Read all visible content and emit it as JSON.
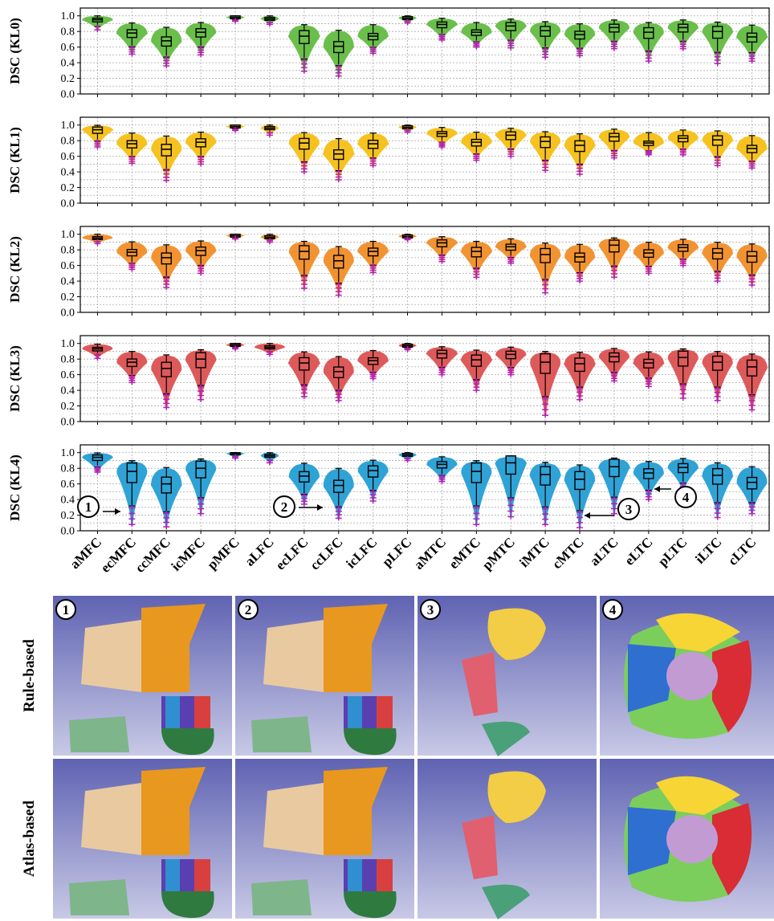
{
  "chart_data": {
    "type": "violin",
    "categories": [
      "aMFC",
      "ecMFC",
      "ccMFC",
      "icMFC",
      "pMFC",
      "aLFC",
      "ecLFC",
      "ccLFC",
      "icLFC",
      "pLFC",
      "aMTC",
      "eMTC",
      "pMTC",
      "iMTC",
      "cMTC",
      "aLTC",
      "eLTC",
      "pLTC",
      "iLTC",
      "cLTC"
    ],
    "ylim": [
      0.0,
      1.1
    ],
    "yticks": [
      "0.0",
      "0.2",
      "0.4",
      "0.6",
      "0.8",
      "1.0"
    ],
    "grid": true,
    "panels": [
      {
        "ylabel": "DSC (KL0)",
        "color": "#6abf4b",
        "median": [
          0.95,
          0.78,
          0.68,
          0.79,
          0.98,
          0.96,
          0.74,
          0.61,
          0.74,
          0.97,
          0.89,
          0.79,
          0.87,
          0.81,
          0.76,
          0.85,
          0.79,
          0.85,
          0.8,
          0.73
        ],
        "low": [
          0.82,
          0.51,
          0.36,
          0.5,
          0.93,
          0.89,
          0.29,
          0.23,
          0.52,
          0.91,
          0.69,
          0.6,
          0.59,
          0.47,
          0.49,
          0.58,
          0.42,
          0.58,
          0.39,
          0.42
        ]
      },
      {
        "ylabel": "DSC (KL1)",
        "color": "#f6c21f",
        "median": [
          0.94,
          0.76,
          0.69,
          0.78,
          0.98,
          0.96,
          0.77,
          0.63,
          0.76,
          0.97,
          0.89,
          0.78,
          0.87,
          0.79,
          0.74,
          0.85,
          0.77,
          0.83,
          0.81,
          0.7
        ],
        "low": [
          0.72,
          0.51,
          0.29,
          0.5,
          0.93,
          0.87,
          0.4,
          0.3,
          0.48,
          0.91,
          0.72,
          0.55,
          0.6,
          0.42,
          0.37,
          0.58,
          0.62,
          0.62,
          0.48,
          0.45
        ]
      },
      {
        "ylabel": "DSC (KL2)",
        "color": "#f29332",
        "median": [
          0.95,
          0.77,
          0.7,
          0.79,
          0.98,
          0.96,
          0.78,
          0.66,
          0.78,
          0.97,
          0.89,
          0.78,
          0.84,
          0.74,
          0.71,
          0.86,
          0.76,
          0.83,
          0.76,
          0.72
        ],
        "low": [
          0.88,
          0.55,
          0.32,
          0.5,
          0.94,
          0.9,
          0.31,
          0.22,
          0.51,
          0.93,
          0.65,
          0.45,
          0.63,
          0.25,
          0.4,
          0.45,
          0.5,
          0.6,
          0.4,
          0.35
        ]
      },
      {
        "ylabel": "DSC (KL3)",
        "color": "#de5a5a",
        "median": [
          0.93,
          0.76,
          0.68,
          0.8,
          0.98,
          0.95,
          0.75,
          0.64,
          0.78,
          0.97,
          0.87,
          0.79,
          0.86,
          0.76,
          0.74,
          0.83,
          0.75,
          0.82,
          0.76,
          0.7
        ],
        "low": [
          0.81,
          0.5,
          0.18,
          0.28,
          0.93,
          0.86,
          0.32,
          0.27,
          0.55,
          0.92,
          0.6,
          0.4,
          0.6,
          0.08,
          0.28,
          0.52,
          0.45,
          0.3,
          0.27,
          0.15
        ]
      },
      {
        "ylabel": "DSC (KL4)",
        "color": "#2fa3d6",
        "median": [
          0.94,
          0.76,
          0.6,
          0.8,
          0.99,
          0.96,
          0.7,
          0.58,
          0.77,
          0.97,
          0.85,
          0.76,
          0.87,
          0.72,
          0.66,
          0.82,
          0.74,
          0.81,
          0.71,
          0.62
        ],
        "low": [
          0.75,
          0.08,
          0.05,
          0.22,
          0.93,
          0.87,
          0.34,
          0.16,
          0.38,
          0.9,
          0.63,
          0.08,
          0.18,
          0.08,
          0.04,
          0.22,
          0.4,
          0.5,
          0.17,
          0.22
        ]
      }
    ],
    "annotations": [
      "1",
      "2",
      "3",
      "4"
    ]
  },
  "figure": {
    "row_labels": [
      "Rule-based",
      "Atlas-based"
    ],
    "column_markers": [
      "1",
      "2",
      "3",
      "4"
    ]
  }
}
